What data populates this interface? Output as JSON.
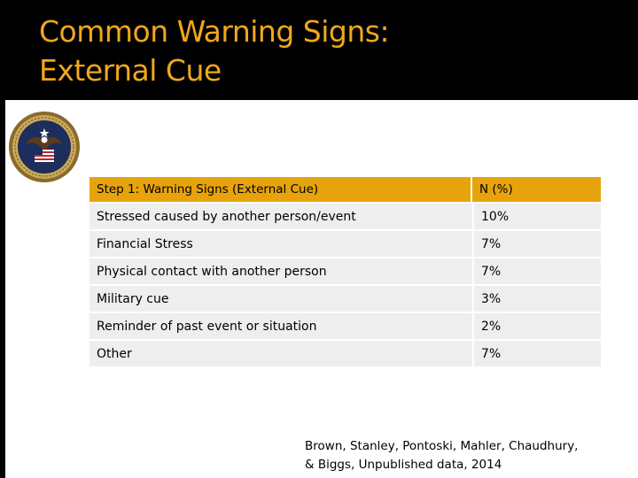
{
  "slide": {
    "title_line1": "Common Warning Signs:",
    "title_line2": "External Cue"
  },
  "colors": {
    "title": "#f0a81a",
    "title_bar": "#000000",
    "table_header": "#e7a30c",
    "table_row": "#eeeeee"
  },
  "logo": {
    "icon": "va-seal-icon"
  },
  "table": {
    "headers": [
      "Step 1: Warning Signs (External Cue)",
      "N (%)"
    ],
    "rows": [
      [
        "Stressed caused by another person/event",
        "10%"
      ],
      [
        "Financial Stress",
        "7%"
      ],
      [
        "Physical contact with another person",
        "7%"
      ],
      [
        "Military cue",
        "3%"
      ],
      [
        "Reminder of past event or situation",
        "2%"
      ],
      [
        "Other",
        "7%"
      ]
    ]
  },
  "citation": {
    "line1": "Brown, Stanley, Pontoski, Mahler, Chaudhury,",
    "line2": "& Biggs, Unpublished data, 2014"
  }
}
